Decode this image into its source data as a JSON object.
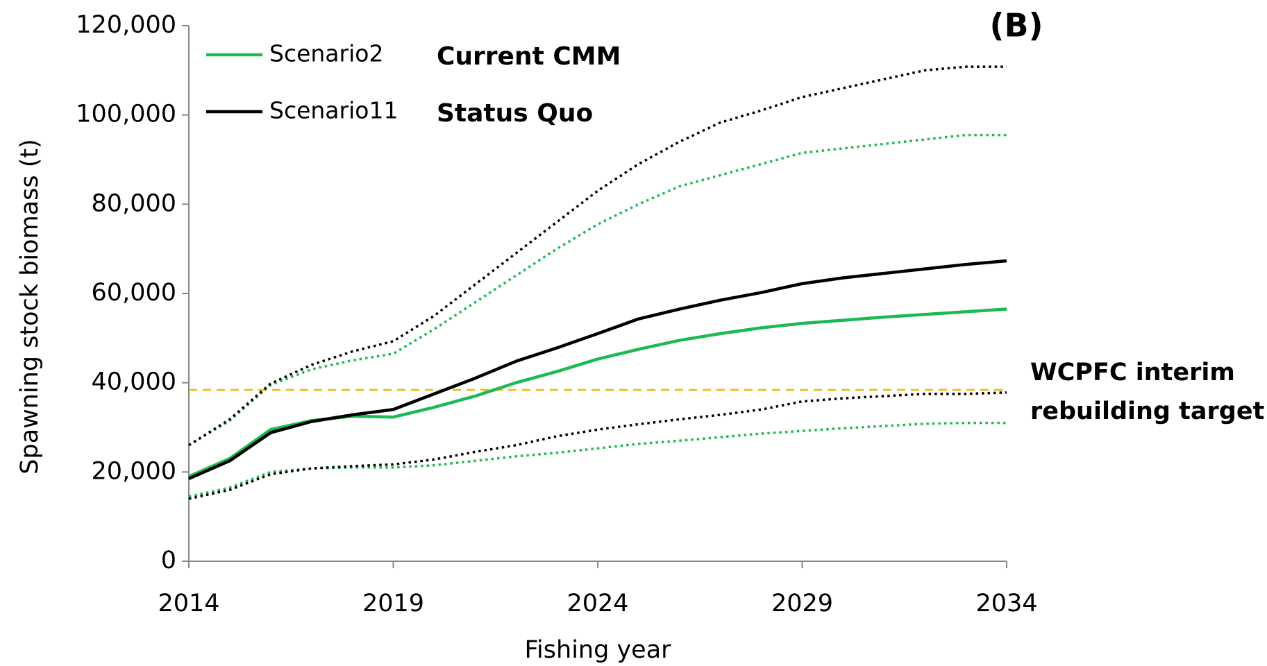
{
  "chart_data": {
    "type": "line",
    "panel_label": "(B)",
    "x_label": "Fishing year",
    "y_label": "Spawning stock biomass (t)",
    "x": [
      2014,
      2015,
      2016,
      2017,
      2018,
      2019,
      2020,
      2021,
      2022,
      2023,
      2024,
      2025,
      2026,
      2027,
      2028,
      2029,
      2030,
      2031,
      2032,
      2033,
      2034
    ],
    "xlim": [
      2014,
      2034
    ],
    "xticks": [
      2014,
      2019,
      2024,
      2029,
      2034
    ],
    "ylim": [
      0,
      120000
    ],
    "yticks": [
      0,
      {
        "value": 20000,
        "label": "20,000"
      },
      {
        "value": 40000,
        "label": "40,000"
      },
      {
        "value": 60000,
        "label": "60,000"
      },
      {
        "value": 80000,
        "label": "80,000"
      },
      {
        "value": 100000,
        "label": "100,000"
      },
      {
        "value": 120000,
        "label": "120,000"
      }
    ],
    "grid": false,
    "series": [
      {
        "name": "Scenario2",
        "annotation": "Current CMM",
        "color": "#1db954",
        "style": "solid",
        "values": [
          19000,
          23000,
          29500,
          31500,
          32500,
          32300,
          34500,
          37000,
          40000,
          42500,
          45300,
          47500,
          49500,
          51000,
          52300,
          53300,
          54000,
          54700,
          55300,
          55900,
          56500
        ]
      },
      {
        "name": "Scenario11",
        "annotation": "Status Quo",
        "color": "#000000",
        "style": "solid",
        "values": [
          18500,
          22500,
          28800,
          31300,
          32800,
          34000,
          37500,
          41000,
          44800,
          47800,
          51000,
          54300,
          56500,
          58500,
          60200,
          62200,
          63500,
          64500,
          65500,
          66500,
          67300
        ]
      },
      {
        "color": "#1db954",
        "style": "dotted",
        "values": [
          26000,
          31500,
          39500,
          43000,
          45000,
          46500,
          52000,
          58000,
          64000,
          70000,
          75500,
          80000,
          84000,
          86500,
          89000,
          91500,
          92500,
          93500,
          94500,
          95500,
          95500
        ]
      },
      {
        "color": "#000000",
        "style": "dotted",
        "values": [
          26000,
          31800,
          39800,
          44000,
          47000,
          49300,
          55000,
          62000,
          69000,
          76000,
          83000,
          89000,
          94000,
          98300,
          101000,
          104000,
          106000,
          108000,
          110000,
          110800,
          110800
        ]
      },
      {
        "color": "#1db954",
        "style": "dotted",
        "values": [
          14500,
          16500,
          20000,
          20800,
          21000,
          21000,
          21500,
          22500,
          23500,
          24300,
          25300,
          26300,
          27000,
          27800,
          28600,
          29200,
          29800,
          30300,
          30800,
          31000,
          31000
        ]
      },
      {
        "color": "#000000",
        "style": "dotted",
        "values": [
          14000,
          16000,
          19500,
          20800,
          21300,
          21700,
          22800,
          24500,
          26000,
          28000,
          29500,
          30700,
          31800,
          32800,
          34000,
          35800,
          36500,
          37000,
          37500,
          37500,
          37800
        ]
      }
    ],
    "hline": {
      "value": 38400,
      "color": "#f5b800",
      "label_lines": [
        "WCPFC interim",
        "rebuilding target"
      ]
    }
  }
}
